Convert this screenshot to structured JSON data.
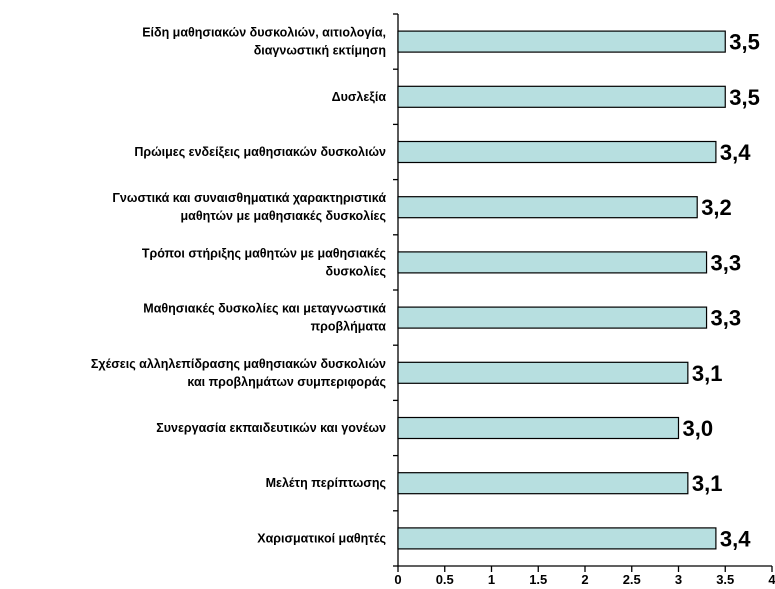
{
  "chart_data": {
    "type": "bar",
    "orientation": "horizontal",
    "categories": [
      [
        "Είδη μαθησιακών δυσκολιών, αιτιολογία,",
        "διαγνωστική εκτίμηση"
      ],
      [
        "Δυσλεξία"
      ],
      [
        "Πρώιμες ενδείξεις μαθησιακών δυσκολιών"
      ],
      [
        "Γνωστικά και συναισθηματικά χαρακτηριστικά",
        "μαθητών με μαθησιακές δυσκολίες"
      ],
      [
        "Τρόποι στήριξης μαθητών με μαθησιακές",
        "δυσκολίες"
      ],
      [
        "Μαθησιακές δυσκολίες και μεταγνωστικά",
        "προβλήματα"
      ],
      [
        "Σχέσεις αλληλεπίδρασης μαθησιακών δυσκολιών",
        "και προβλημάτων συμπεριφοράς"
      ],
      [
        "Συνεργασία εκπαιδευτικών και γονέων"
      ],
      [
        "Μελέτη περίπτωσης"
      ],
      [
        "Χαρισματικοί μαθητές"
      ]
    ],
    "values": [
      3.5,
      3.5,
      3.4,
      3.2,
      3.3,
      3.3,
      3.1,
      3.0,
      3.1,
      3.4
    ],
    "value_labels": [
      "3,5",
      "3,5",
      "3,4",
      "3,2",
      "3,3",
      "3,3",
      "3,1",
      "3,0",
      "3,1",
      "3,4"
    ],
    "xticks": [
      "0",
      "0.5",
      "1",
      "1.5",
      "2",
      "2.5",
      "3",
      "3.5",
      "4"
    ],
    "xlim": [
      0,
      4
    ],
    "grid": false,
    "bar_color": "#b7dfe0",
    "bar_edge_color": "#000000"
  }
}
